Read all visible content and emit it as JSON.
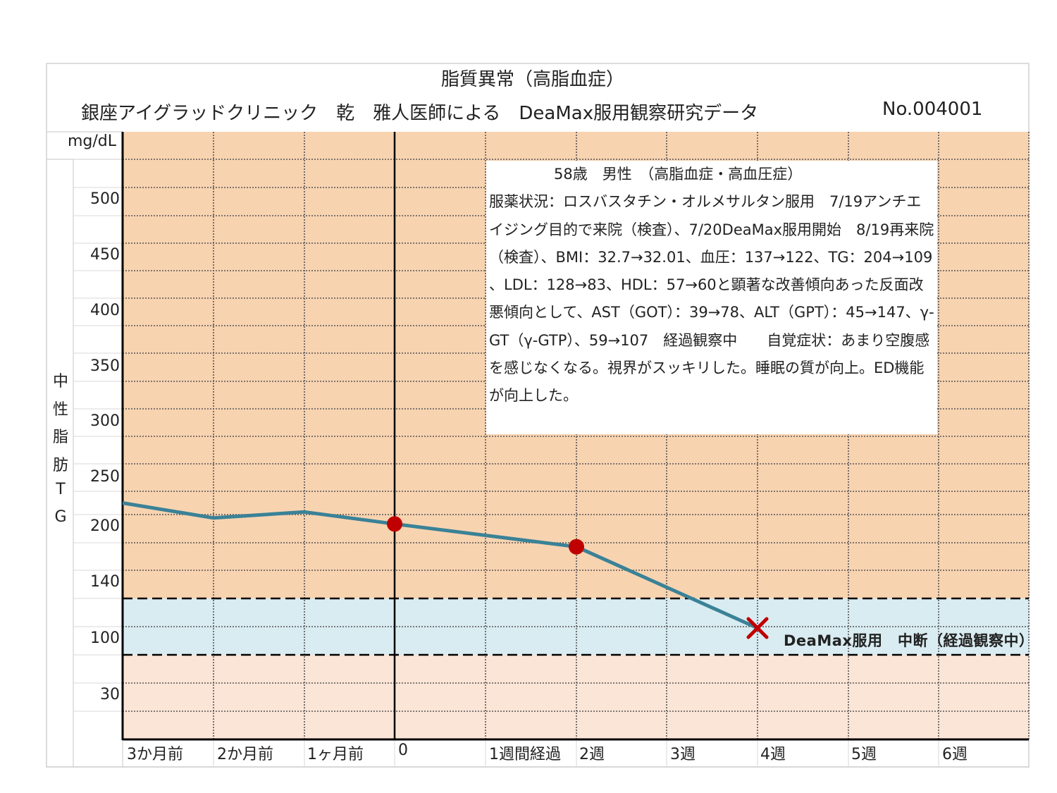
{
  "title": {
    "line1": "脂質異常（高脂血症）",
    "line2": "銀座アイグラッドクリニック　乾　雅人医師による　DeaMax服用観察研究データ",
    "number": "No.004001"
  },
  "unit": "mg/dL",
  "y_axis_chars": [
    "中",
    "性",
    "脂",
    "肪",
    "T",
    "G"
  ],
  "info": {
    "heading": "58歳　男性　（高脂血症・高血圧症）",
    "body": "服薬状況：ロスバスタチン・オルメサルタン服用　7/19アンチエイジング目的で来院（検査）、7/20DeaMax服用開始　8/19再来院（検査）、BMI：32.7→32.01、血圧：137→122、TG：204→109、LDL：128→83、HDL：57→60と顕著な改善傾向あった反面改悪傾向として、AST（GOT）：39→78、ALT（GPT）：45→147、γ-GT（γ-GTP）、59→107　経過観察中　　自覚症状：あまり空腹感を感じなくなる。視界がスッキリした。睡眠の質が向上。ED機能が向上した。"
  },
  "stop_label": "DeaMax服用　中断（経過観察中）",
  "colors": {
    "high_zone": "#F8D3B0",
    "normal_zone": "#D9ECF1",
    "low_zone": "#FBE5D6",
    "line": "#3A8297",
    "marker": "#C00000",
    "grid": "#555555"
  },
  "chart_data": {
    "type": "line",
    "ylabel": "中性脂肪TG",
    "unit": "mg/dL",
    "y_ticks": [
      "500",
      "450",
      "400",
      "350",
      "300",
      "250",
      "200",
      "140",
      "100",
      "30"
    ],
    "categories": [
      "3か月前",
      "2か月前",
      "1ヶ月前",
      "0",
      "1週間経過",
      "2週",
      "3週",
      "4週",
      "5週",
      "6週"
    ],
    "series": [
      {
        "values": [
          225,
          210,
          216,
          204,
          null,
          180,
          null,
          109,
          null,
          null
        ],
        "markers": [
          null,
          null,
          null,
          "dot",
          null,
          "dot",
          null,
          "cross",
          null,
          null
        ]
      }
    ],
    "normal_range": [
      50,
      150
    ],
    "baseline_category": "0"
  }
}
